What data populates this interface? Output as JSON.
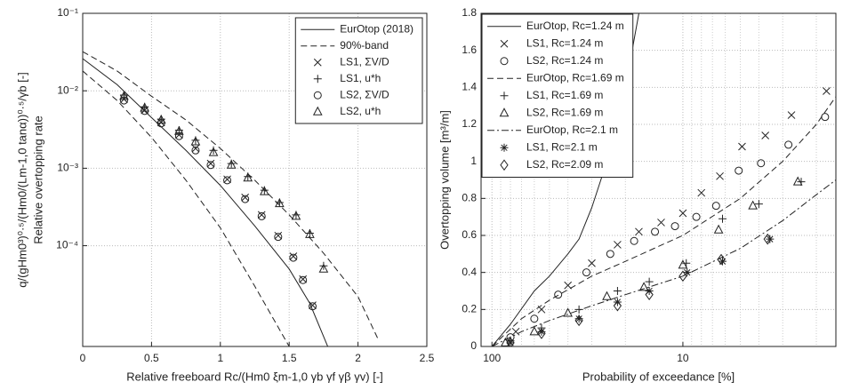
{
  "chart_data": [
    {
      "type": "line",
      "xlabel": "Relative freeboard Rc/(Hm0 ξm-1,0 γb γf γβ γv) [-]",
      "ylabel": [
        "Relative overtopping rate",
        "q/(gHm0³)⁰·⁵/(Hm0/(Lm-1,0 tanα))⁰·⁵/γb [-]"
      ],
      "xlim": [
        0,
        2.5
      ],
      "xticks": [
        0,
        0.5,
        1,
        1.5,
        2,
        2.5
      ],
      "ylim": [
        5e-06,
        0.1
      ],
      "ylog": true,
      "yticks": [
        {
          "value": 0.0001,
          "label": "10⁻⁴"
        },
        {
          "value": 0.001,
          "label": "10⁻³"
        },
        {
          "value": 0.01,
          "label": "10⁻²"
        },
        {
          "value": 0.1,
          "label": "10⁻¹"
        }
      ],
      "grid": true,
      "legend": "upper right",
      "series": [
        {
          "name": "EurOtop (2018)",
          "style": "solid",
          "color": "#222",
          "x": [
            0,
            0.25,
            0.5,
            0.75,
            1.0,
            1.25,
            1.5,
            1.65,
            1.78
          ],
          "values": [
            0.026,
            0.012,
            0.0045,
            0.0017,
            0.0006,
            0.00018,
            5e-05,
            1.8e-05,
            5e-06
          ]
        },
        {
          "name": "90%-band",
          "style": "dashed",
          "color": "#222",
          "x": [
            0,
            0.25,
            0.5,
            0.75,
            1,
            1.25,
            1.5,
            1.75,
            2.0,
            2.15,
            null,
            0,
            0.25,
            0.5,
            0.75,
            1.0,
            1.25,
            1.5
          ],
          "values": [
            0.032,
            0.018,
            0.0085,
            0.0042,
            0.0018,
            0.0007,
            0.00025,
            8e-05,
            2.2e-05,
            6e-06,
            null,
            0.018,
            0.0075,
            0.0025,
            0.0007,
            0.00017,
            3e-05,
            5e-06
          ]
        },
        {
          "name": "LS1, ΣV/D",
          "marker": "x",
          "color": "#222",
          "x": [
            0.3,
            0.45,
            0.57,
            0.7,
            0.82,
            0.93,
            1.05,
            1.18,
            1.3,
            1.42,
            1.53,
            1.6,
            1.67
          ],
          "values": [
            0.0078,
            0.0056,
            0.0039,
            0.0027,
            0.0018,
            0.00115,
            0.00072,
            0.00042,
            0.00025,
            0.000135,
            7.3e-05,
            3.7e-05,
            1.7e-05
          ]
        },
        {
          "name": "LS1, u*h",
          "marker": "+",
          "color": "#222",
          "x": [
            0.3,
            0.45,
            0.57,
            0.7,
            0.82,
            0.95,
            1.08,
            1.2,
            1.32,
            1.43,
            1.55,
            1.65,
            1.75
          ],
          "values": [
            0.0088,
            0.0062,
            0.0043,
            0.0031,
            0.0023,
            0.0017,
            0.00115,
            0.00078,
            0.00052,
            0.00036,
            0.00025,
            0.000145,
            5.5e-05
          ]
        },
        {
          "name": "LS2, ΣV/D",
          "marker": "o",
          "color": "#222",
          "x": [
            0.3,
            0.45,
            0.57,
            0.7,
            0.82,
            0.93,
            1.05,
            1.18,
            1.3,
            1.42,
            1.53,
            1.6,
            1.67
          ],
          "values": [
            0.0075,
            0.0055,
            0.0038,
            0.0026,
            0.0017,
            0.0011,
            0.0007,
            0.0004,
            0.00024,
            0.00013,
            7e-05,
            3.6e-05,
            1.65e-05
          ]
        },
        {
          "name": "LS2, u*h",
          "marker": "^",
          "color": "#222",
          "x": [
            0.3,
            0.45,
            0.57,
            0.7,
            0.82,
            0.95,
            1.08,
            1.2,
            1.32,
            1.43,
            1.55,
            1.65,
            1.75
          ],
          "values": [
            0.0085,
            0.006,
            0.0042,
            0.003,
            0.0022,
            0.0016,
            0.0011,
            0.00075,
            0.0005,
            0.00035,
            0.00024,
            0.00014,
            5e-05
          ]
        }
      ]
    },
    {
      "type": "line",
      "xlabel": "Probability of exceedance [%]",
      "ylabel": [
        "Overtopping volume [m³/m]"
      ],
      "xlim": [
        114,
        1.58
      ],
      "xlog": true,
      "xticks": [
        100,
        10
      ],
      "xminor": [
        90,
        80,
        70,
        60,
        50,
        40,
        30,
        20,
        9,
        8,
        7,
        6,
        5,
        4,
        3,
        2
      ],
      "ylim": [
        0,
        1.8
      ],
      "yticks": [
        0,
        0.2,
        0.4,
        0.6,
        0.8,
        1,
        1.2,
        1.4,
        1.6,
        1.8
      ],
      "grid": true,
      "legend": "upper left",
      "series": [
        {
          "name": "EurOtop, Rc=1.24 m",
          "style": "solid",
          "color": "#222",
          "x": [
            100,
            80,
            60,
            50,
            40,
            35,
            30,
            25,
            20,
            17
          ],
          "values": [
            0,
            0.12,
            0.3,
            0.38,
            0.5,
            0.58,
            0.75,
            1.0,
            1.4,
            1.8
          ]
        },
        {
          "name": "LS1, Rc=1.24 m",
          "marker": "x",
          "color": "#222",
          "x": [
            1.77,
            2.7,
            3.7,
            4.9,
            6.4,
            8,
            10,
            13,
            17,
            22,
            30,
            40,
            55,
            75
          ],
          "values": [
            1.38,
            1.25,
            1.14,
            1.08,
            0.92,
            0.83,
            0.72,
            0.67,
            0.62,
            0.55,
            0.45,
            0.33,
            0.2,
            0.08
          ]
        },
        {
          "name": "LS2, Rc=1.24 m",
          "marker": "o",
          "color": "#222",
          "x": [
            1.8,
            2.8,
            3.9,
            5.1,
            6.7,
            8.5,
            11,
            14,
            18,
            24,
            32,
            45,
            60,
            80
          ],
          "values": [
            1.24,
            1.09,
            0.99,
            0.95,
            0.76,
            0.7,
            0.65,
            0.62,
            0.57,
            0.5,
            0.4,
            0.28,
            0.15,
            0.05
          ]
        },
        {
          "name": "EurOtop, Rc=1.69 m",
          "style": "dashed",
          "color": "#222",
          "x": [
            100,
            70,
            50,
            30,
            20,
            10,
            5,
            3,
            2,
            1.58
          ],
          "values": [
            0,
            0.15,
            0.25,
            0.38,
            0.46,
            0.6,
            0.8,
            1.0,
            1.2,
            1.35
          ]
        },
        {
          "name": "LS1, Rc=1.69 m",
          "marker": "+",
          "color": "#222",
          "x": [
            2.4,
            4.0,
            6.2,
            9.6,
            15,
            22,
            35,
            55,
            80
          ],
          "values": [
            0.89,
            0.77,
            0.69,
            0.45,
            0.35,
            0.3,
            0.2,
            0.1,
            0.03
          ]
        },
        {
          "name": "LS2, Rc=1.69 m",
          "marker": "^",
          "color": "#222",
          "x": [
            2.5,
            4.3,
            6.5,
            10,
            16,
            25,
            40,
            60,
            85
          ],
          "values": [
            0.89,
            0.76,
            0.63,
            0.44,
            0.32,
            0.27,
            0.18,
            0.08,
            0.02
          ]
        },
        {
          "name": "EurOtop, Rc=2.1 m",
          "style": "dashdot",
          "color": "#222",
          "x": [
            100,
            70,
            50,
            30,
            20,
            10,
            5,
            3,
            2,
            1.58
          ],
          "values": [
            0,
            0.08,
            0.14,
            0.22,
            0.28,
            0.38,
            0.53,
            0.68,
            0.82,
            0.9
          ]
        },
        {
          "name": "LS1, Rc=2.1 m",
          "marker": "*",
          "color": "#222",
          "x": [
            3.5,
            6.2,
            9.5,
            15,
            22,
            35,
            55,
            80
          ],
          "values": [
            0.58,
            0.46,
            0.4,
            0.3,
            0.24,
            0.15,
            0.08,
            0.02
          ]
        },
        {
          "name": "LS2, Rc=2.09 m",
          "marker": "d",
          "color": "#222",
          "x": [
            3.6,
            6.3,
            10,
            15,
            22,
            35,
            55,
            80
          ],
          "values": [
            0.58,
            0.47,
            0.38,
            0.28,
            0.22,
            0.14,
            0.07,
            0.02
          ]
        }
      ]
    }
  ]
}
